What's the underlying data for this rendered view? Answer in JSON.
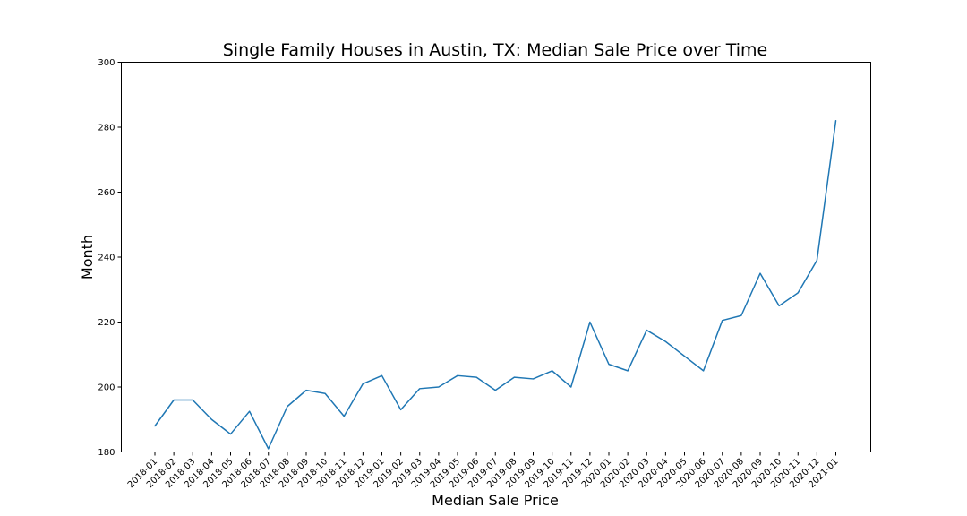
{
  "chart_data": {
    "type": "line",
    "title": "Single Family Houses in Austin, TX: Median Sale Price over Time",
    "xlabel": "Median Sale Price",
    "ylabel": "Month",
    "ylim": [
      180,
      300
    ],
    "yticks": [
      180,
      200,
      220,
      240,
      260,
      280,
      300
    ],
    "grid": false,
    "legend": "none",
    "line_color": "#1f77b4",
    "categories": [
      "2018-01",
      "2018-02",
      "2018-03",
      "2018-04",
      "2018-05",
      "2018-06",
      "2018-07",
      "2018-08",
      "2018-09",
      "2018-10",
      "2018-11",
      "2018-12",
      "2019-01",
      "2019-02",
      "2019-03",
      "2019-04",
      "2019-05",
      "2019-06",
      "2019-07",
      "2019-08",
      "2019-09",
      "2019-10",
      "2019-11",
      "2019-12",
      "2020-01",
      "2020-02",
      "2020-03",
      "2020-04",
      "2020-05",
      "2020-06",
      "2020-07",
      "2020-08",
      "2020-09",
      "2020-10",
      "2020-11",
      "2020-12",
      "2021-01"
    ],
    "series": [
      {
        "values": [
          188,
          196,
          196,
          190,
          185.5,
          192.5,
          181,
          194,
          199,
          198,
          191,
          201,
          203.5,
          193,
          199.5,
          200,
          203.5,
          203,
          199,
          203,
          202.5,
          205,
          200,
          220,
          207,
          205,
          217.5,
          214,
          209.5,
          205,
          220.5,
          222,
          235,
          225,
          229,
          239,
          282
        ]
      }
    ]
  }
}
